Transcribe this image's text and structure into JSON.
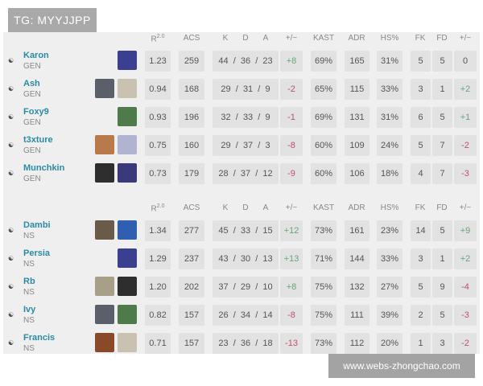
{
  "watermark_top": "TG: MYYJJPP",
  "watermark_bottom": "www.webs-zhongchao.com",
  "headers": [
    "R",
    "ACS",
    "K",
    "D",
    "A",
    "+/−",
    "KAST",
    "ADR",
    "HS%",
    "FK",
    "FD",
    "+/−"
  ],
  "rating_version": "2.0",
  "colors": {
    "positive": "#6aa57a",
    "negative": "#c0506a",
    "name": "#2a8ba8"
  },
  "teams": [
    {
      "players": [
        {
          "flag": "south-korea-flag",
          "name": "Karon",
          "team": "GEN",
          "agents": [
            "#3b3f8f"
          ],
          "r": "1.23",
          "acs": "259",
          "k": "44",
          "d": "36",
          "a": "23",
          "pm": "+8",
          "kast": "69%",
          "adr": "165",
          "hs": "31%",
          "fk": "5",
          "fd": "5",
          "fpm": "0"
        },
        {
          "flag": "south-korea-flag",
          "name": "Ash",
          "team": "GEN",
          "agents": [
            "#5a5f6a",
            "#c9c2b0"
          ],
          "r": "0.94",
          "acs": "168",
          "k": "29",
          "d": "31",
          "a": "9",
          "pm": "-2",
          "kast": "65%",
          "adr": "115",
          "hs": "33%",
          "fk": "3",
          "fd": "1",
          "fpm": "+2"
        },
        {
          "flag": "south-korea-flag",
          "name": "Foxy9",
          "team": "GEN",
          "agents": [
            "#4f7a4a"
          ],
          "r": "0.93",
          "acs": "196",
          "k": "32",
          "d": "33",
          "a": "9",
          "pm": "-1",
          "kast": "69%",
          "adr": "131",
          "hs": "31%",
          "fk": "6",
          "fd": "5",
          "fpm": "+1"
        },
        {
          "flag": "south-korea-flag",
          "name": "t3xture",
          "team": "GEN",
          "agents": [
            "#b87a4a",
            "#b0b4d0"
          ],
          "r": "0.75",
          "acs": "160",
          "k": "29",
          "d": "37",
          "a": "3",
          "pm": "-8",
          "kast": "60%",
          "adr": "109",
          "hs": "24%",
          "fk": "5",
          "fd": "7",
          "fpm": "-2"
        },
        {
          "flag": "south-korea-flag",
          "name": "Munchkin",
          "team": "GEN",
          "agents": [
            "#2e2e2e",
            "#3a3a7a"
          ],
          "r": "0.73",
          "acs": "179",
          "k": "28",
          "d": "37",
          "a": "12",
          "pm": "-9",
          "kast": "60%",
          "adr": "106",
          "hs": "18%",
          "fk": "4",
          "fd": "7",
          "fpm": "-3"
        }
      ]
    },
    {
      "players": [
        {
          "flag": "south-korea-flag",
          "name": "Dambi",
          "team": "NS",
          "agents": [
            "#6a5a4a",
            "#2f5fae"
          ],
          "r": "1.34",
          "acs": "277",
          "k": "45",
          "d": "33",
          "a": "15",
          "pm": "+12",
          "kast": "73%",
          "adr": "161",
          "hs": "23%",
          "fk": "14",
          "fd": "5",
          "fpm": "+9"
        },
        {
          "flag": "south-korea-flag",
          "name": "Persia",
          "team": "NS",
          "agents": [
            "#3b3f8f"
          ],
          "r": "1.29",
          "acs": "237",
          "k": "43",
          "d": "30",
          "a": "13",
          "pm": "+13",
          "kast": "71%",
          "adr": "144",
          "hs": "33%",
          "fk": "3",
          "fd": "1",
          "fpm": "+2"
        },
        {
          "flag": "south-korea-flag",
          "name": "Rb",
          "team": "NS",
          "agents": [
            "#a89f88",
            "#2e2e2e"
          ],
          "r": "1.20",
          "acs": "202",
          "k": "37",
          "d": "29",
          "a": "10",
          "pm": "+8",
          "kast": "75%",
          "adr": "132",
          "hs": "27%",
          "fk": "5",
          "fd": "9",
          "fpm": "-4"
        },
        {
          "flag": "south-korea-flag",
          "name": "Ivy",
          "team": "NS",
          "agents": [
            "#5a5f6a",
            "#4f7a4a"
          ],
          "r": "0.82",
          "acs": "157",
          "k": "26",
          "d": "34",
          "a": "14",
          "pm": "-8",
          "kast": "75%",
          "adr": "111",
          "hs": "39%",
          "fk": "2",
          "fd": "5",
          "fpm": "-3"
        },
        {
          "flag": "south-korea-flag",
          "name": "Francis",
          "team": "NS",
          "agents": [
            "#8a4a2a",
            "#c9c2b0"
          ],
          "r": "0.71",
          "acs": "157",
          "k": "23",
          "d": "36",
          "a": "18",
          "pm": "-13",
          "kast": "73%",
          "adr": "112",
          "hs": "20%",
          "fk": "1",
          "fd": "3",
          "fpm": "-2"
        }
      ]
    }
  ]
}
